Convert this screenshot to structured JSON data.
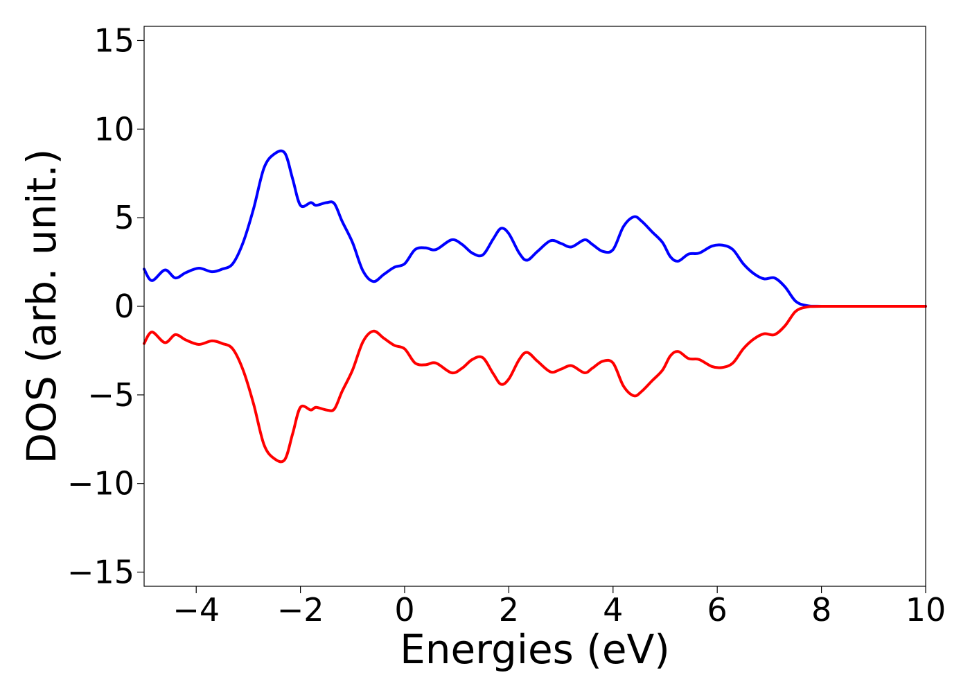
{
  "chart_data": {
    "type": "line",
    "xlabel": "Energies (eV)",
    "ylabel": "DOS (arb. unit.)",
    "xlim": [
      -5,
      10
    ],
    "ylim": [
      -15.8,
      15.8
    ],
    "x_ticks": [
      -4,
      -2,
      0,
      2,
      4,
      6,
      8,
      10
    ],
    "x_tick_labels": [
      "−4",
      "−2",
      "0",
      "2",
      "4",
      "6",
      "8",
      "10"
    ],
    "y_ticks": [
      15,
      10,
      5,
      0,
      -5,
      -10,
      -15
    ],
    "y_tick_labels": [
      "15",
      "10",
      "5",
      "0",
      "−5",
      "−10",
      "−15"
    ],
    "grid": false,
    "legend": "none",
    "series": [
      {
        "color": "#0000ff",
        "points": [
          [
            -5.0,
            2.1
          ],
          [
            -4.85,
            1.45
          ],
          [
            -4.6,
            2.05
          ],
          [
            -4.4,
            1.6
          ],
          [
            -4.2,
            1.9
          ],
          [
            -3.95,
            2.15
          ],
          [
            -3.7,
            1.95
          ],
          [
            -3.5,
            2.1
          ],
          [
            -3.3,
            2.4
          ],
          [
            -3.1,
            3.6
          ],
          [
            -2.9,
            5.5
          ],
          [
            -2.7,
            7.8
          ],
          [
            -2.5,
            8.6
          ],
          [
            -2.3,
            8.65
          ],
          [
            -2.15,
            7.2
          ],
          [
            -2.0,
            5.7
          ],
          [
            -1.8,
            5.85
          ],
          [
            -1.7,
            5.7
          ],
          [
            -1.5,
            5.85
          ],
          [
            -1.35,
            5.8
          ],
          [
            -1.2,
            4.8
          ],
          [
            -1.0,
            3.6
          ],
          [
            -0.8,
            2.0
          ],
          [
            -0.6,
            1.4
          ],
          [
            -0.4,
            1.8
          ],
          [
            -0.2,
            2.2
          ],
          [
            0.0,
            2.4
          ],
          [
            0.2,
            3.2
          ],
          [
            0.4,
            3.3
          ],
          [
            0.6,
            3.2
          ],
          [
            0.9,
            3.75
          ],
          [
            1.1,
            3.5
          ],
          [
            1.3,
            3.0
          ],
          [
            1.5,
            2.9
          ],
          [
            1.7,
            3.8
          ],
          [
            1.85,
            4.4
          ],
          [
            2.0,
            4.1
          ],
          [
            2.2,
            3.0
          ],
          [
            2.35,
            2.6
          ],
          [
            2.55,
            3.1
          ],
          [
            2.8,
            3.7
          ],
          [
            3.0,
            3.55
          ],
          [
            3.2,
            3.35
          ],
          [
            3.45,
            3.75
          ],
          [
            3.6,
            3.5
          ],
          [
            3.8,
            3.1
          ],
          [
            4.0,
            3.2
          ],
          [
            4.2,
            4.5
          ],
          [
            4.4,
            5.05
          ],
          [
            4.55,
            4.8
          ],
          [
            4.75,
            4.2
          ],
          [
            4.95,
            3.6
          ],
          [
            5.1,
            2.8
          ],
          [
            5.25,
            2.55
          ],
          [
            5.45,
            2.95
          ],
          [
            5.65,
            3.0
          ],
          [
            5.9,
            3.4
          ],
          [
            6.1,
            3.45
          ],
          [
            6.3,
            3.2
          ],
          [
            6.5,
            2.4
          ],
          [
            6.7,
            1.85
          ],
          [
            6.9,
            1.55
          ],
          [
            7.1,
            1.6
          ],
          [
            7.3,
            1.1
          ],
          [
            7.5,
            0.3
          ],
          [
            7.7,
            0.05
          ],
          [
            8.0,
            0.0
          ],
          [
            9.0,
            0.0
          ],
          [
            10.0,
            0.0
          ]
        ]
      },
      {
        "color": "#ff0000",
        "mirror_of_series": 0
      }
    ]
  }
}
